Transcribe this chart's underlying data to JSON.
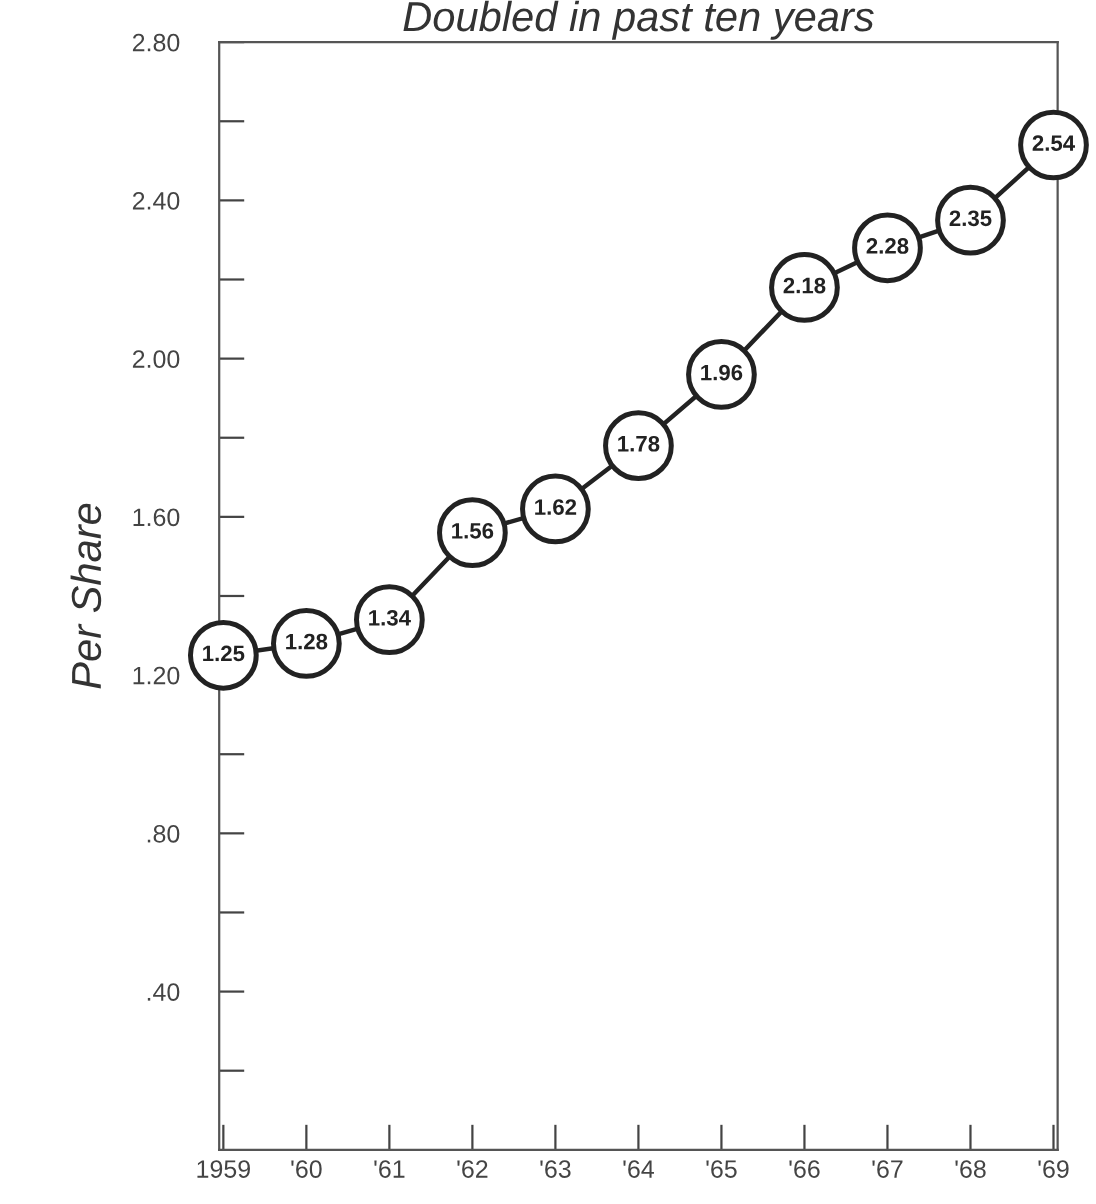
{
  "chart_data": {
    "type": "line",
    "title": "Doubled in past ten years",
    "ylabel": "Per Share",
    "categories": [
      "1959",
      "'60",
      "'61",
      "'62",
      "'63",
      "'64",
      "'65",
      "'66",
      "'67",
      "'68",
      "'69"
    ],
    "series": [
      {
        "color": "#222222",
        "values": [
          1.25,
          1.28,
          1.34,
          1.56,
          1.62,
          1.78,
          1.96,
          2.18,
          2.28,
          2.35,
          2.54
        ]
      }
    ],
    "ylim": [
      0,
      2.8
    ],
    "yticks": [
      {
        "value": 0.2,
        "label": null
      },
      {
        "value": 0.4,
        "label": ".40"
      },
      {
        "value": 0.6,
        "label": null
      },
      {
        "value": 0.8,
        "label": ".80"
      },
      {
        "value": 1.0,
        "label": null
      },
      {
        "value": 1.2,
        "label": "1.20"
      },
      {
        "value": 1.4,
        "label": null
      },
      {
        "value": 1.6,
        "label": "1.60"
      },
      {
        "value": 1.8,
        "label": null
      },
      {
        "value": 2.0,
        "label": "2.00"
      },
      {
        "value": 2.2,
        "label": null
      },
      {
        "value": 2.4,
        "label": "2.40"
      },
      {
        "value": 2.6,
        "label": null
      },
      {
        "value": 2.8,
        "label": "2.80"
      }
    ],
    "marker": "circle",
    "line_style": "solid",
    "data_labels": true,
    "grid": false,
    "legend": false
  }
}
